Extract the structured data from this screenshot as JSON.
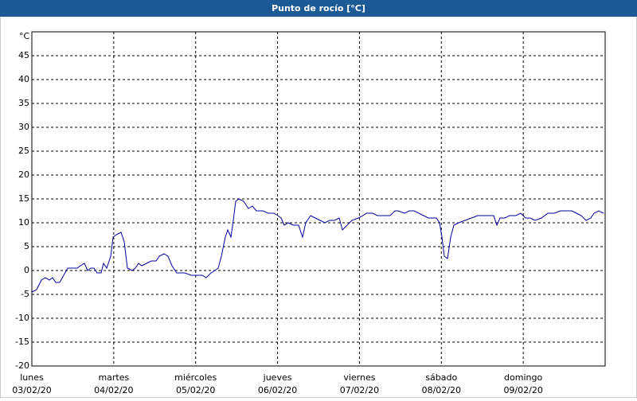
{
  "chart_data": {
    "type": "line",
    "title": "Punto de rocío [°C]",
    "y_unit": "°C",
    "xlim": [
      0,
      7
    ],
    "ylim": [
      -20,
      50
    ],
    "yticks": [
      -20,
      -15,
      -10,
      -5,
      0,
      5,
      10,
      15,
      20,
      25,
      30,
      35,
      40,
      45
    ],
    "xticks": [
      {
        "value": 0,
        "label": "lunes"
      },
      {
        "value": 1,
        "label": "martes"
      },
      {
        "value": 2,
        "label": "miércoles"
      },
      {
        "value": 3,
        "label": "jueves"
      },
      {
        "value": 4,
        "label": "viernes"
      },
      {
        "value": 5,
        "label": "sábado"
      },
      {
        "value": 6,
        "label": "domingo"
      }
    ],
    "xtick_dates": [
      "03/02/20",
      "04/02/20",
      "05/02/20",
      "06/02/20",
      "07/02/20",
      "08/02/20",
      "09/02/20"
    ],
    "grid": true,
    "x": [
      0,
      0.058,
      0.117,
      0.165,
      0.214,
      0.253,
      0.292,
      0.34,
      0.389,
      0.437,
      0.506,
      0.554,
      0.593,
      0.642,
      0.681,
      0.719,
      0.758,
      0.797,
      0.846,
      0.875,
      0.914,
      0.963,
      0.992,
      1.031,
      1.089,
      1.128,
      1.167,
      1.225,
      1.264,
      1.303,
      1.342,
      1.4,
      1.458,
      1.517,
      1.556,
      1.614,
      1.662,
      1.711,
      1.769,
      1.867,
      1.944,
      2.022,
      2.081,
      2.129,
      2.158,
      2.187,
      2.236,
      2.275,
      2.314,
      2.362,
      2.392,
      2.431,
      2.46,
      2.489,
      2.528,
      2.586,
      2.644,
      2.693,
      2.742,
      2.819,
      2.887,
      2.955,
      3.004,
      3.043,
      3.082,
      3.13,
      3.189,
      3.257,
      3.305,
      3.344,
      3.403,
      3.461,
      3.519,
      3.578,
      3.636,
      3.694,
      3.753,
      3.792,
      3.85,
      3.908,
      3.986,
      4.044,
      4.083,
      4.161,
      4.219,
      4.278,
      4.375,
      4.433,
      4.472,
      4.55,
      4.608,
      4.667,
      4.725,
      4.783,
      4.841,
      4.939,
      4.978,
      5.007,
      5.036,
      5.075,
      5.114,
      5.153,
      5.211,
      5.289,
      5.367,
      5.444,
      5.522,
      5.6,
      5.639,
      5.678,
      5.717,
      5.775,
      5.833,
      5.911,
      5.969,
      6.028,
      6.086,
      6.144,
      6.222,
      6.3,
      6.378,
      6.455,
      6.533,
      6.592,
      6.65,
      6.708,
      6.767,
      6.825,
      6.864,
      6.922,
      6.981
    ],
    "series": [
      {
        "color": "#0000a0",
        "values": [
          -4.5,
          -4,
          -2,
          -1.5,
          -2,
          -1.5,
          -2.5,
          -2.5,
          -1,
          0.5,
          0.5,
          0.5,
          1,
          1.5,
          0,
          0.5,
          0.5,
          -0.5,
          -0.5,
          1.5,
          0.5,
          3,
          7,
          7.5,
          8,
          6,
          0.5,
          0,
          0.5,
          1.5,
          1,
          1.5,
          2,
          2,
          3,
          3.5,
          3,
          1,
          -0.5,
          -0.5,
          -1,
          -1,
          -1,
          -1.5,
          -1,
          -0.5,
          0,
          0.5,
          3,
          7,
          8.5,
          7,
          10.5,
          14.5,
          15,
          14.5,
          13,
          13.5,
          12.5,
          12.5,
          12,
          12,
          11.5,
          11,
          9.5,
          10,
          9.5,
          9.5,
          7,
          10,
          11.5,
          11,
          10.5,
          10,
          10.5,
          10.5,
          11,
          8.5,
          9.5,
          10.5,
          11,
          11.5,
          12,
          12,
          11.5,
          11.5,
          11.5,
          12.5,
          12.5,
          12,
          12.5,
          12.5,
          12,
          11.5,
          11,
          11,
          10,
          7,
          3,
          2.5,
          7,
          9.5,
          10,
          10.5,
          11,
          11.5,
          11.5,
          11.5,
          11.5,
          9.5,
          11,
          11,
          11.5,
          11.5,
          12,
          11,
          11,
          10.5,
          11,
          12,
          12,
          12.5,
          12.5,
          12.5,
          12,
          11.5,
          10.5,
          11,
          12,
          12.5,
          12
        ]
      }
    ]
  }
}
